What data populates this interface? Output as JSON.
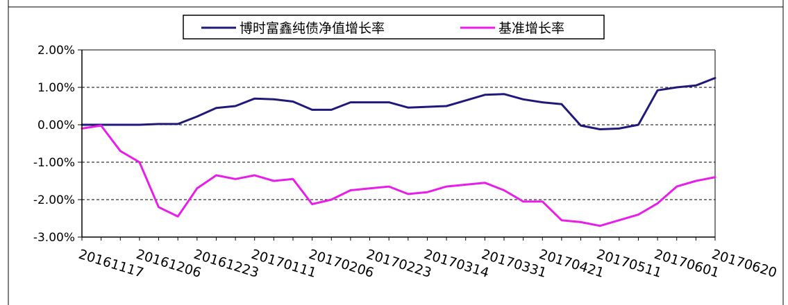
{
  "chart_data": {
    "type": "line",
    "title": "",
    "xlabel": "",
    "ylabel": "",
    "ylim": [
      -3.0,
      2.0
    ],
    "y_ticks": [
      2.0,
      1.0,
      0.0,
      -1.0,
      -2.0,
      -3.0
    ],
    "y_tick_labels": [
      "2.00%",
      "1.00%",
      "0.00%",
      "-1.00%",
      "-2.00%",
      "-3.00%"
    ],
    "x_tick_labels": [
      "20161117",
      "20161206",
      "20161223",
      "20170111",
      "20170206",
      "20170223",
      "20170314",
      "20170331",
      "20170421",
      "20170511",
      "20170601",
      "20170620"
    ],
    "x_ticks_at_index": [
      0,
      3,
      6,
      9,
      12,
      15,
      18,
      21,
      24,
      27,
      30,
      33
    ],
    "n_points": 34,
    "grid": "horizontal dashed at 1.00%, 0.00%, -1.00%, -2.00%",
    "legend_position": "top",
    "series": [
      {
        "name": "博时富鑫纯债净值增长率",
        "color": "#1f1a7a",
        "values": [
          0.0,
          0.0,
          0.0,
          0.0,
          0.02,
          0.02,
          0.22,
          0.45,
          0.5,
          0.7,
          0.68,
          0.62,
          0.4,
          0.4,
          0.6,
          0.6,
          0.6,
          0.46,
          0.48,
          0.5,
          0.65,
          0.8,
          0.82,
          0.68,
          0.6,
          0.55,
          -0.02,
          -0.12,
          -0.1,
          0.0,
          0.92,
          1.0,
          1.05,
          1.25
        ]
      },
      {
        "name": "基准增长率",
        "color": "#e81ee8",
        "values": [
          -0.1,
          -0.02,
          -0.7,
          -1.0,
          -2.2,
          -2.45,
          -1.7,
          -1.35,
          -1.45,
          -1.35,
          -1.5,
          -1.45,
          -2.12,
          -2.0,
          -1.75,
          -1.7,
          -1.65,
          -1.85,
          -1.8,
          -1.65,
          -1.6,
          -1.55,
          -1.75,
          -2.05,
          -2.05,
          -2.55,
          -2.6,
          -2.7,
          -2.55,
          -2.4,
          -2.1,
          -1.65,
          -1.5,
          -1.4
        ]
      }
    ]
  },
  "colors": {
    "grid": "#000000",
    "axis": "#000000",
    "frame": "#000000",
    "background": "#ffffff"
  }
}
